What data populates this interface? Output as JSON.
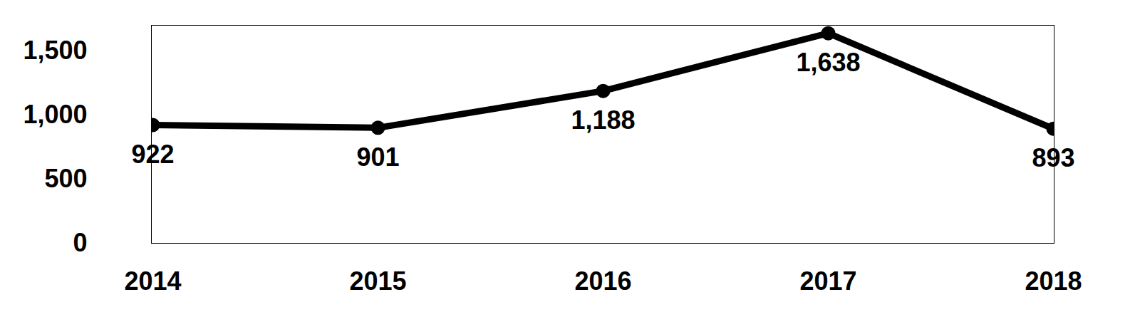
{
  "chart_data": {
    "type": "line",
    "categories": [
      "2014",
      "2015",
      "2016",
      "2017",
      "2018"
    ],
    "values": [
      922,
      901,
      1188,
      1638,
      893
    ],
    "value_labels": [
      "922",
      "901",
      "1,188",
      "1,638",
      "893"
    ],
    "color": "#000000",
    "marker": "circle",
    "ylim": [
      0,
      1700
    ],
    "yticks": [
      0,
      500,
      1000,
      1500
    ],
    "grid": false,
    "data_labels": true
  }
}
